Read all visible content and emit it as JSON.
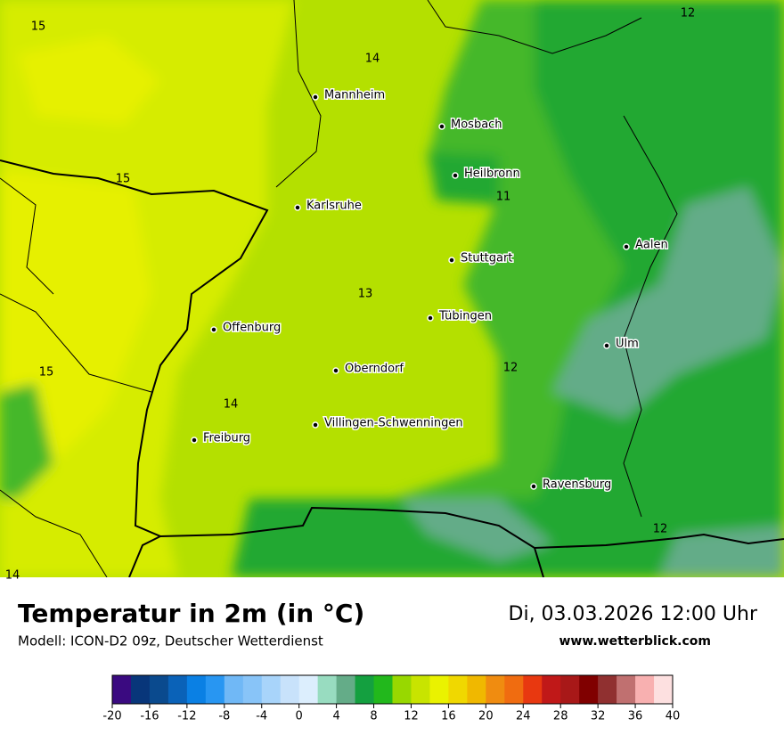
{
  "header": {
    "title": "Temperatur in 2m (in °C)",
    "subtitle": "Modell: ICON-D2 09z, Deutscher Wetterdienst",
    "date": "Di, 03.03.2026 12:00 Uhr",
    "website": "www.wetterblick.com"
  },
  "cities": [
    "Mannheim",
    "Mosbach",
    "Heilbronn",
    "Karlsruhe",
    "Aalen",
    "Stuttgart",
    "Tübingen",
    "Ulm",
    "Offenburg",
    "Oberndorf",
    "Villingen-Schwenningen",
    "Freiburg",
    "Ravensburg"
  ],
  "contour_labels": [
    15,
    14,
    12,
    15,
    11,
    13,
    12,
    15,
    14,
    12,
    14
  ],
  "colorbar": {
    "lim": [
      -20,
      40
    ],
    "ticks": [
      -20,
      -16,
      -12,
      -8,
      -4,
      0,
      4,
      8,
      12,
      16,
      20,
      24,
      28,
      32,
      36,
      40
    ],
    "colors": [
      "#3a0a80",
      "#08367a",
      "#0a4a8e",
      "#0a62b8",
      "#0a80e4",
      "#2896f2",
      "#70b8f6",
      "#88c4f8",
      "#a8d4fa",
      "#c8e2fb",
      "#dceefd",
      "#98dcc0",
      "#64ac88",
      "#14a040",
      "#22b81c",
      "#98d800",
      "#c8e400",
      "#eaf200",
      "#f0d800",
      "#f0b800",
      "#f08c10",
      "#f06c10",
      "#e83810",
      "#c01818",
      "#a81818",
      "#800000",
      "#903030",
      "#c07070",
      "#f8b0b0",
      "#fde0e0"
    ]
  }
}
